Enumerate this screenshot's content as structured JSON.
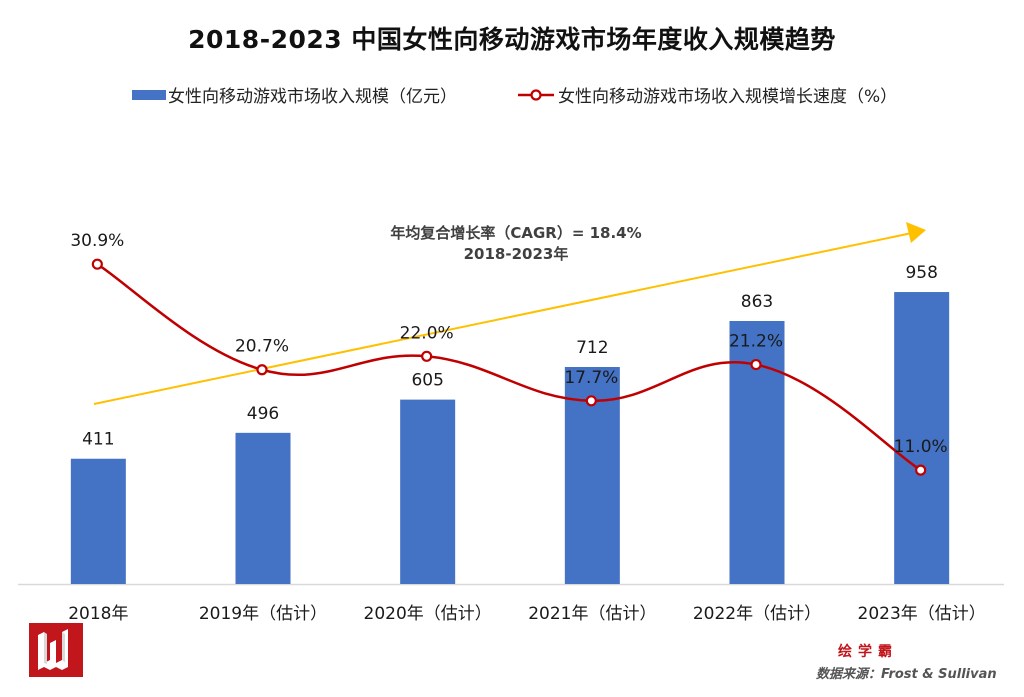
{
  "chart_data": {
    "type": "bar",
    "title": "2018-2023  中国女性向移动游戏市场年度收入规模趋势",
    "categories": [
      "2018年",
      "2019年（估计）",
      "2020年（估计）",
      "2021年（估计）",
      "2022年（估计）",
      "2023年（估计）"
    ],
    "series": [
      {
        "name": "女性向移动游戏市场收入规模（亿元）",
        "type": "bar",
        "axis": "left",
        "color": "#4472c4",
        "values": [
          411,
          496,
          605,
          712,
          863,
          958
        ],
        "labels": [
          "411",
          "496",
          "605",
          "712",
          "863",
          "958"
        ]
      },
      {
        "name": "女性向移动游戏市场收入规模增长速度（%）",
        "type": "line",
        "axis": "right",
        "color": "#c00000",
        "smooth": true,
        "values": [
          30.9,
          20.7,
          22.0,
          17.7,
          21.2,
          11.0
        ],
        "labels": [
          "30.9%",
          "20.7%",
          "22.0%",
          "17.7%",
          "21.2%",
          "11.0%"
        ]
      }
    ],
    "bar_axis_range": [
      0,
      1260
    ],
    "line_axis_range": [
      0,
      37.1
    ],
    "axes_visible": false,
    "grid": false,
    "legend_position": "top",
    "annotation": {
      "text_line1": "年均复合增长率（CAGR）= 18.4%",
      "text_line2": "2018-2023年",
      "arrow_color": "#ffc000",
      "cagr": 18.4
    },
    "xlabel": "",
    "ylabel": ""
  },
  "legend": {
    "bar_label": "女性向移动游戏市场收入规模（亿元）",
    "line_label": "女性向移动游戏市场收入规模增长速度（%）"
  },
  "footer": {
    "brand": "绘学霸",
    "source": "数据来源：Frost & Sullivan"
  }
}
